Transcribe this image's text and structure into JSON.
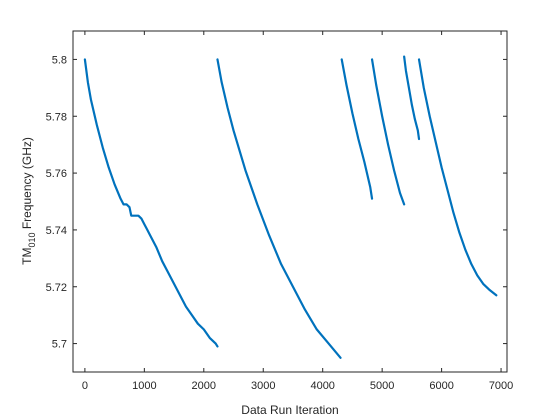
{
  "chart_data": {
    "type": "line",
    "title": "",
    "xlabel": "Data Run Iteration",
    "ylabel_main": "TM",
    "ylabel_sub": "010",
    "ylabel_rest": " Frequency (GHz)",
    "xlim": [
      -200,
      7100
    ],
    "ylim": [
      5.69,
      5.81
    ],
    "xticks": [
      0,
      1000,
      2000,
      3000,
      4000,
      5000,
      6000,
      7000
    ],
    "yticks": [
      5.7,
      5.72,
      5.74,
      5.76,
      5.78,
      5.8
    ],
    "ytick_labels": [
      "5.7",
      "5.72",
      "5.74",
      "5.76",
      "5.78",
      "5.8"
    ],
    "grid": false,
    "line_color": "#0072BD",
    "series": [
      {
        "x": [
          0,
          50,
          100,
          200,
          300,
          400,
          500,
          600,
          650,
          700,
          750,
          780,
          800,
          850,
          900,
          950,
          1000,
          1050,
          1100,
          1200,
          1300,
          1400,
          1500,
          1600,
          1700,
          1800,
          1900,
          2000,
          2100,
          2200,
          2230
        ],
        "y": [
          5.8,
          5.792,
          5.786,
          5.777,
          5.769,
          5.762,
          5.756,
          5.751,
          5.749,
          5.749,
          5.748,
          5.745,
          5.745,
          5.745,
          5.745,
          5.744,
          5.742,
          5.74,
          5.738,
          5.734,
          5.729,
          5.725,
          5.721,
          5.717,
          5.713,
          5.71,
          5.707,
          5.705,
          5.702,
          5.7,
          5.699
        ]
      },
      {
        "x": [
          2230,
          2300,
          2400,
          2500,
          2700,
          2900,
          3100,
          3300,
          3500,
          3700,
          3900,
          4100,
          4300
        ],
        "y": [
          5.8,
          5.792,
          5.783,
          5.775,
          5.761,
          5.749,
          5.738,
          5.728,
          5.72,
          5.712,
          5.705,
          5.7,
          5.695
        ]
      },
      {
        "x": [
          4320,
          4400,
          4500,
          4600,
          4700,
          4800,
          4830
        ],
        "y": [
          5.8,
          5.791,
          5.781,
          5.772,
          5.764,
          5.755,
          5.751
        ]
      },
      {
        "x": [
          4830,
          4900,
          5000,
          5100,
          5200,
          5300,
          5370
        ],
        "y": [
          5.8,
          5.791,
          5.78,
          5.77,
          5.761,
          5.753,
          5.749
        ]
      },
      {
        "x": [
          5370,
          5400,
          5450,
          5500,
          5550,
          5600,
          5620
        ],
        "y": [
          5.801,
          5.796,
          5.79,
          5.784,
          5.779,
          5.775,
          5.772
        ]
      },
      {
        "x": [
          5620,
          5700,
          5800,
          5900,
          6000,
          6100,
          6200,
          6300,
          6400,
          6500,
          6600,
          6700,
          6800,
          6920
        ],
        "y": [
          5.8,
          5.79,
          5.78,
          5.771,
          5.762,
          5.754,
          5.746,
          5.739,
          5.733,
          5.728,
          5.724,
          5.721,
          5.719,
          5.717
        ]
      }
    ]
  }
}
